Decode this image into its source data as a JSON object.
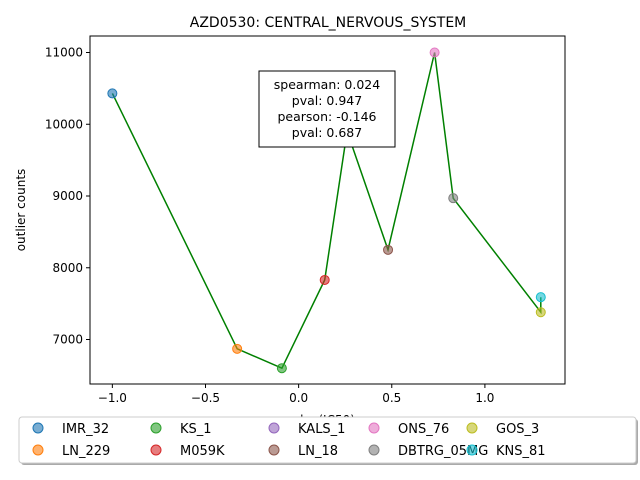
{
  "chart_data": {
    "type": "scatter",
    "title": "AZD0530: CENTRAL_NERVOUS_SYSTEM",
    "xlabel": "log(IC50)",
    "ylabel": "outlier counts",
    "xlim": [
      -1.12,
      1.43
    ],
    "ylim": [
      6380,
      11230
    ],
    "xticks": [
      -1.0,
      -0.5,
      0.0,
      0.5,
      1.0
    ],
    "xtick_labels": [
      "−1.0",
      "−0.5",
      "0.0",
      "0.5",
      "1.0"
    ],
    "yticks": [
      7000,
      8000,
      9000,
      10000,
      11000
    ],
    "ytick_labels": [
      "7000",
      "8000",
      "9000",
      "10000",
      "11000"
    ],
    "grid": false,
    "points": [
      {
        "name": "IMR_32",
        "x": -1.0,
        "y": 10430,
        "color": "#1f77b4"
      },
      {
        "name": "LN_229",
        "x": -0.33,
        "y": 6870,
        "color": "#ff7f0e"
      },
      {
        "name": "KS_1",
        "x": -0.09,
        "y": 6600,
        "color": "#2ca02c"
      },
      {
        "name": "M059K",
        "x": 0.14,
        "y": 7830,
        "color": "#d62728"
      },
      {
        "name": "KALS_1",
        "x": 0.26,
        "y": 9900,
        "color": "#9467bd"
      },
      {
        "name": "LN_18",
        "x": 0.48,
        "y": 8250,
        "color": "#8c564b"
      },
      {
        "name": "ONS_76",
        "x": 0.73,
        "y": 11000,
        "color": "#e377c2"
      },
      {
        "name": "DBTRG_05MG",
        "x": 0.83,
        "y": 8970,
        "color": "#7f7f7f"
      },
      {
        "name": "GOS_3",
        "x": 1.3,
        "y": 7380,
        "color": "#bcbd22"
      },
      {
        "name": "KNS_81",
        "x": 1.3,
        "y": 7590,
        "color": "#17becf"
      }
    ],
    "line_color": "#008000",
    "stats": [
      "spearman: 0.024",
      "pval: 0.947",
      "pearson: -0.146",
      "pval: 0.687"
    ],
    "legend_placement": "bottom"
  }
}
